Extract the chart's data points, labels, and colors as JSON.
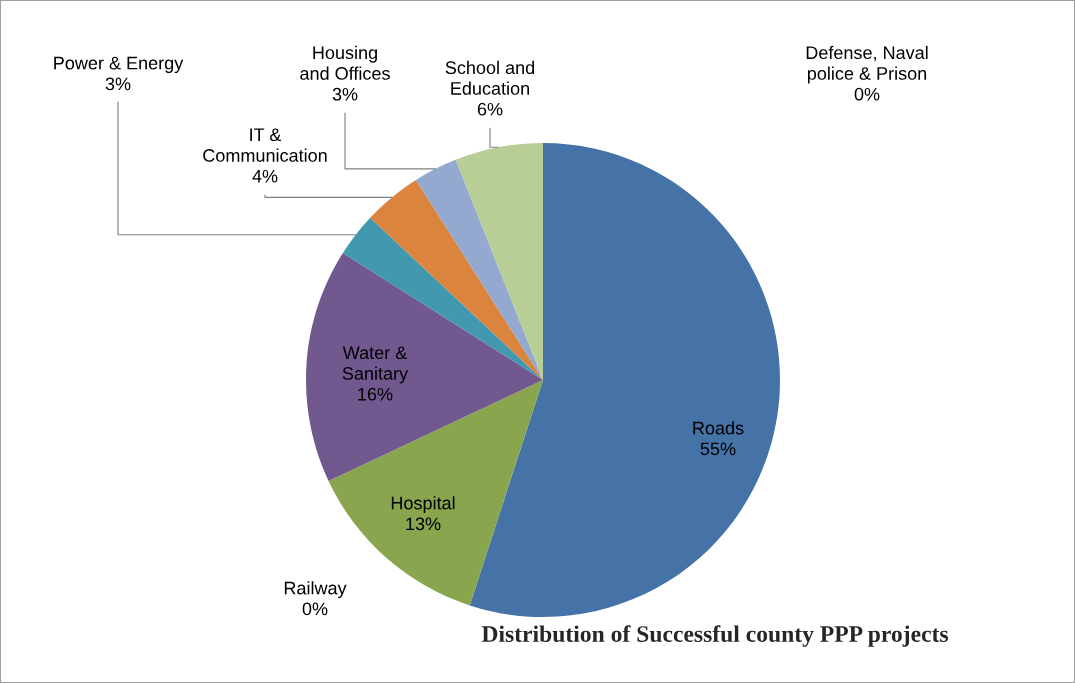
{
  "chart_data": {
    "type": "pie",
    "title": "Distribution of Successful county PPP projects",
    "categories": [
      "Roads",
      "Railway",
      "Hospital",
      "Water &\nSanitary",
      "Power & Energy",
      "IT &\nCommunication",
      "Housing\nand Offices",
      "School and\nEducation",
      "Defense, Naval\npolice & Prison"
    ],
    "values": [
      55,
      0,
      13,
      16,
      3,
      4,
      3,
      6,
      0
    ],
    "value_labels": [
      "55%",
      "0%",
      "13%",
      "16%",
      "3%",
      "4%",
      "3%",
      "6%",
      "0%"
    ],
    "colors": [
      "#4572a7",
      "#aa4643",
      "#89a54e",
      "#71588f",
      "#4198af",
      "#db843d",
      "#93a9cf",
      "#b9cd96",
      "#d09290"
    ],
    "legend": false
  }
}
